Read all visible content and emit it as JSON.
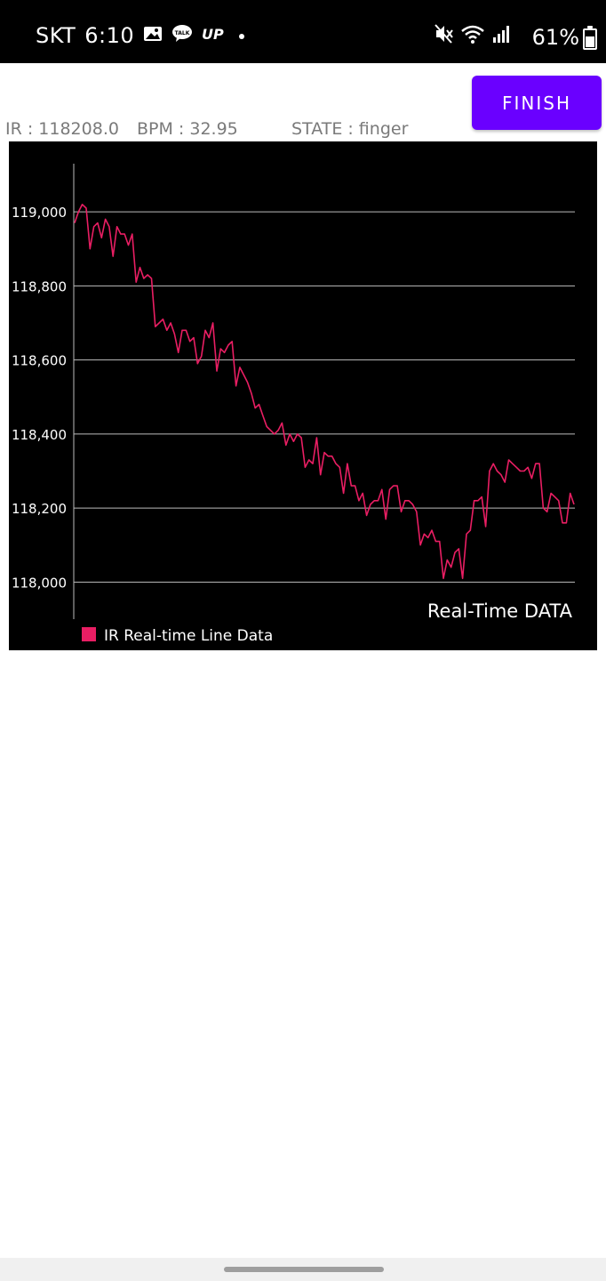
{
  "status_bar": {
    "carrier": "SKT",
    "time": "6:10",
    "battery": "61%",
    "icons": [
      "gallery-icon",
      "kakaotalk-icon",
      "up-icon",
      "dot-icon",
      "mute-icon",
      "wifi-icon",
      "signal-icon",
      "battery-icon"
    ]
  },
  "finish_button": {
    "label": "FINISH",
    "color": "#6a00ff"
  },
  "info": {
    "ir": "IR : 118208.0",
    "bpm": "BPM : 32.95",
    "state": "STATE : finger"
  },
  "chart_data": {
    "type": "line",
    "description": "Real-Time DATA",
    "ylim": [
      117900,
      119130
    ],
    "yticks": [
      119000,
      118800,
      118600,
      118400,
      118200,
      118000
    ],
    "ytick_labels": [
      "119,000",
      "118,800",
      "118,600",
      "118,400",
      "118,200",
      "118,000"
    ],
    "grid": true,
    "legend_position": "bottom-left",
    "series": [
      {
        "name": "IR Real-time Line Data",
        "color": "#e91e63",
        "values": [
          118970,
          119000,
          119020,
          119010,
          118900,
          118960,
          118970,
          118930,
          118980,
          118960,
          118880,
          118960,
          118940,
          118940,
          118910,
          118940,
          118810,
          118850,
          118820,
          118830,
          118820,
          118690,
          118700,
          118710,
          118680,
          118700,
          118670,
          118620,
          118680,
          118680,
          118650,
          118660,
          118590,
          118610,
          118680,
          118660,
          118700,
          118570,
          118630,
          118620,
          118640,
          118650,
          118530,
          118580,
          118560,
          118540,
          118510,
          118470,
          118480,
          118450,
          118420,
          118410,
          118400,
          118410,
          118430,
          118370,
          118400,
          118380,
          118400,
          118390,
          118310,
          118330,
          118320,
          118390,
          118290,
          118350,
          118340,
          118340,
          118320,
          118310,
          118240,
          118320,
          118260,
          118260,
          118220,
          118240,
          118180,
          118210,
          118220,
          118220,
          118250,
          118170,
          118250,
          118260,
          118260,
          118190,
          118220,
          118220,
          118210,
          118190,
          118100,
          118130,
          118120,
          118140,
          118110,
          118110,
          118010,
          118060,
          118040,
          118080,
          118090,
          118010,
          118130,
          118140,
          118220,
          118220,
          118230,
          118150,
          118300,
          118320,
          118300,
          118290,
          118270,
          118330,
          118320,
          118310,
          118300,
          118300,
          118310,
          118280,
          118320,
          118320,
          118200,
          118190,
          118240,
          118230,
          118220,
          118160,
          118160,
          118240,
          118210
        ]
      }
    ]
  }
}
